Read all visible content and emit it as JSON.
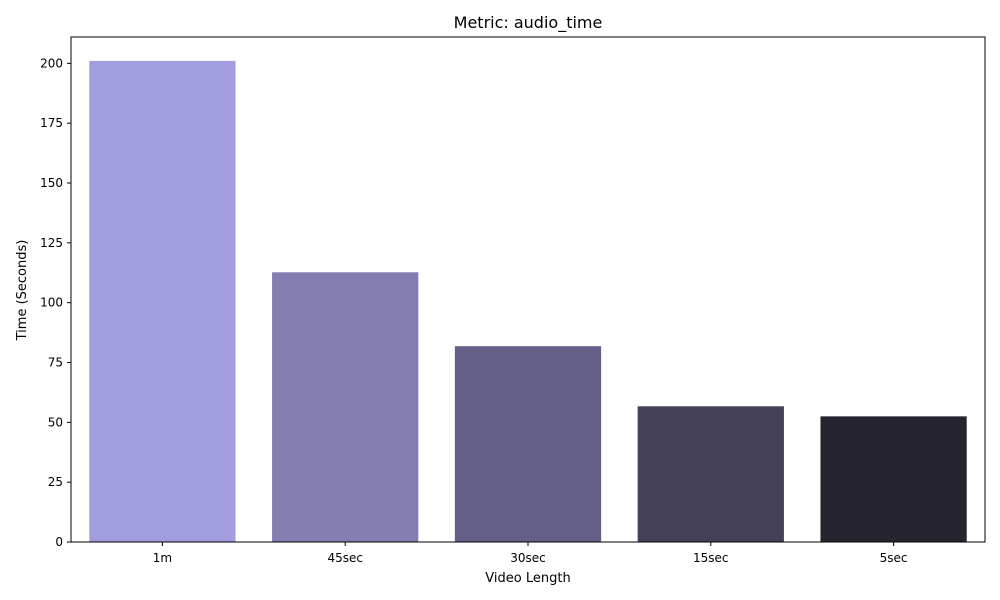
{
  "chart_data": {
    "type": "bar",
    "title": "Metric: audio_time",
    "xlabel": "Video Length",
    "ylabel": "Time (Seconds)",
    "categories": [
      "1m",
      "45sec",
      "30sec",
      "15sec",
      "5sec"
    ],
    "values": [
      201,
      112.7,
      81.8,
      56.7,
      52.5
    ],
    "ylim": [
      0,
      211
    ],
    "yticks": [
      0,
      25,
      50,
      75,
      100,
      125,
      150,
      175,
      200
    ],
    "colors": [
      "#a29ddf",
      "#837eb2",
      "#635f86",
      "#44405a",
      "#26242f"
    ],
    "grid": false,
    "legend": "none"
  }
}
